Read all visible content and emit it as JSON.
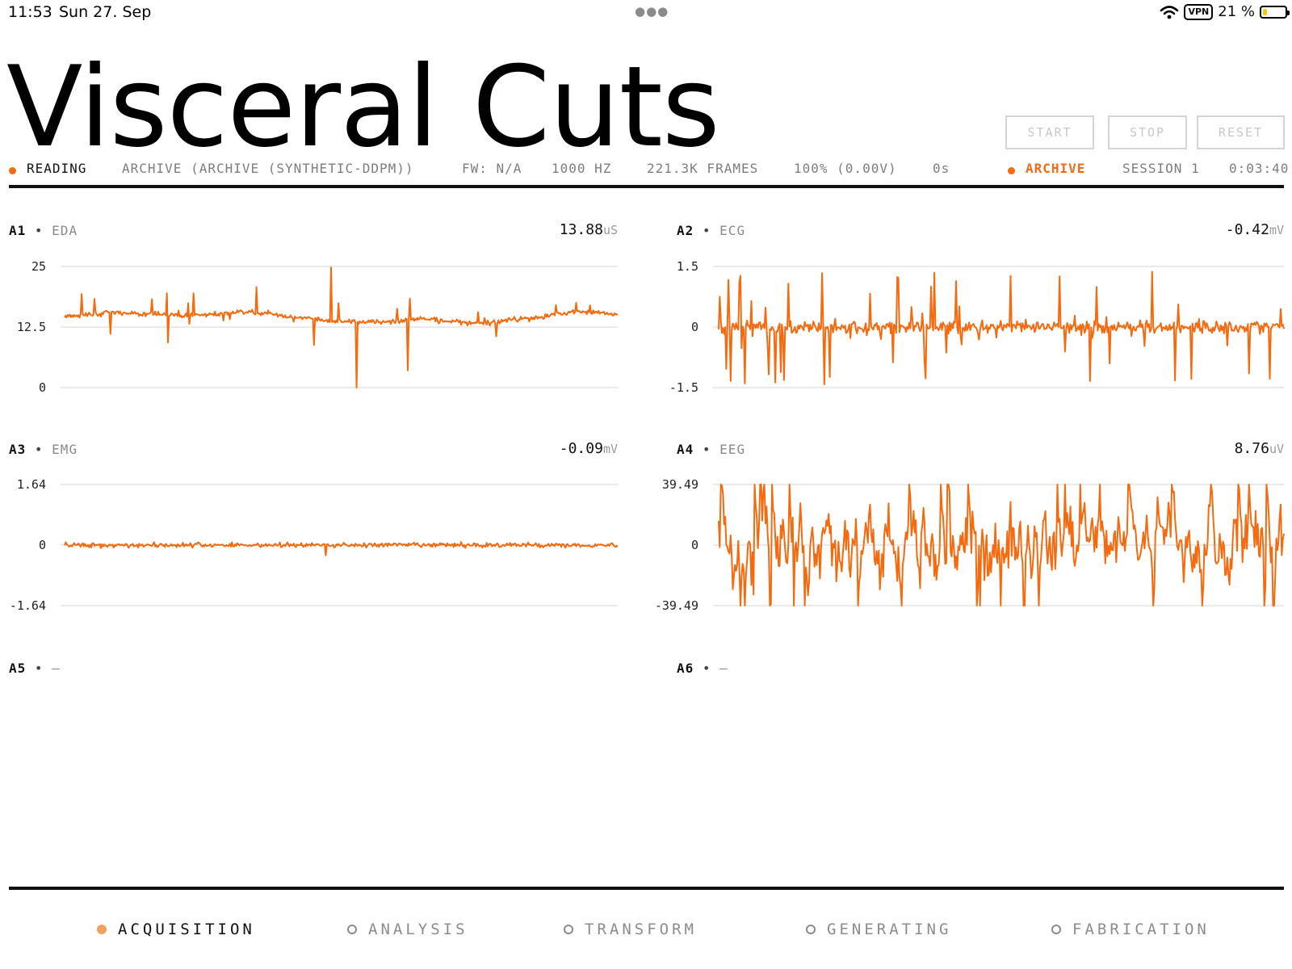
{
  "status_bar": {
    "time": "11:53",
    "date": "Sun 27. Sep",
    "vpn": "VPN",
    "battery": "21 %",
    "battery_level": 0.21
  },
  "app": {
    "title": "Visceral Cuts"
  },
  "controls": {
    "start": "START",
    "stop": "STOP",
    "reset": "RESET"
  },
  "info_bar": {
    "state": "READING",
    "source": "ARCHIVE (ARCHIVE (SYNTHETIC-DDPM))",
    "firmware": "FW: N/A",
    "rate": "1000 HZ",
    "frames": "221.3K FRAMES",
    "battery": "100% (0.00V)",
    "elapsed": "0s",
    "mode": "ARCHIVE",
    "session": "SESSION 1",
    "clock": "0:03:40"
  },
  "colors": {
    "accent": "#f26a14",
    "signal": "#f56a0e",
    "muted": "#7d7d7d"
  },
  "chart_data": [
    {
      "type": "line",
      "channel": "A1",
      "name": "EDA",
      "value": "13.88",
      "unit": "uS",
      "y_ticks": [
        "25",
        "12.5",
        "0"
      ],
      "ylim": [
        0,
        25
      ],
      "trace_style": "tonic-spikes"
    },
    {
      "type": "line",
      "channel": "A2",
      "name": "ECG",
      "value": "-0.42",
      "unit": "mV",
      "y_ticks": [
        "1.5",
        "0",
        "-1.5"
      ],
      "ylim": [
        -1.5,
        1.5
      ],
      "trace_style": "spiky"
    },
    {
      "type": "line",
      "channel": "A3",
      "name": "EMG",
      "value": "-0.09",
      "unit": "mV",
      "y_ticks": [
        "1.64",
        "0",
        "-1.64"
      ],
      "ylim": [
        -1.64,
        1.64
      ],
      "trace_style": "flat-noise"
    },
    {
      "type": "line",
      "channel": "A4",
      "name": "EEG",
      "value": "8.76",
      "unit": "uV",
      "y_ticks": [
        "39.49",
        "0",
        "-39.49"
      ],
      "ylim": [
        -39.49,
        39.49
      ],
      "trace_style": "clipped-noise"
    }
  ],
  "empty_channels": [
    {
      "channel": "A5",
      "name": "—"
    },
    {
      "channel": "A6",
      "name": "—"
    }
  ],
  "nav": {
    "acquisition": "ACQUISITION",
    "analysis": "ANALYSIS",
    "transform": "TRANSFORM",
    "generating": "GENERATING",
    "fabrication": "FABRICATION"
  }
}
